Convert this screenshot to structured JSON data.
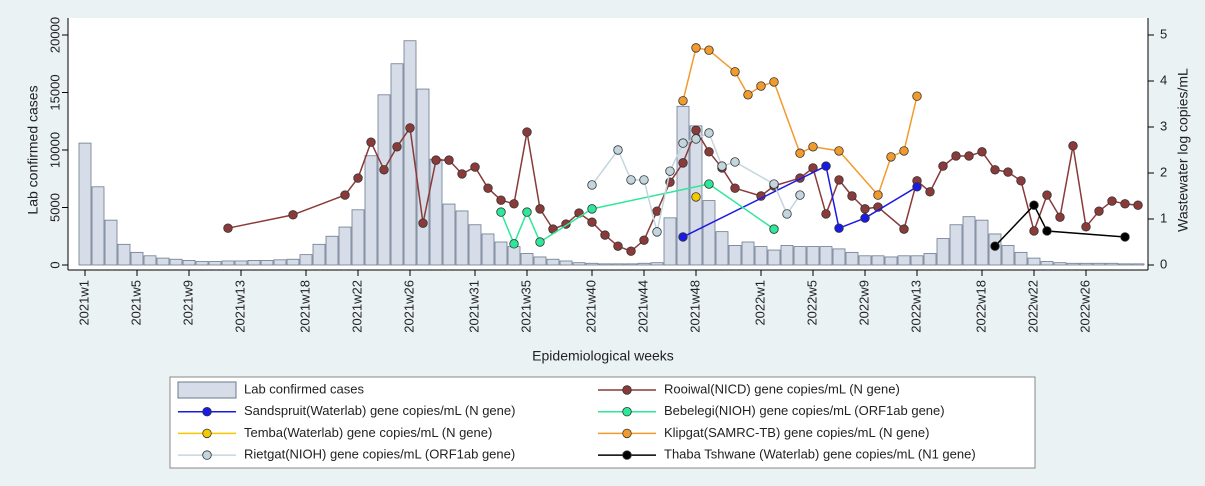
{
  "chart_data": {
    "type": "bar",
    "x_label": "Epidemiological weeks",
    "y_label": "Lab  confirmed cases",
    "y2_label": "Wastewater log copies/mL",
    "ylim": [
      0,
      20000
    ],
    "yticks": [
      0,
      5000,
      10000,
      15000,
      20000
    ],
    "y2lim": [
      0,
      5
    ],
    "y2ticks": [
      0,
      1,
      2,
      3,
      4,
      5
    ],
    "categories": [
      "2021w1",
      null,
      null,
      null,
      "2021w5",
      null,
      null,
      null,
      "2021w9",
      null,
      null,
      null,
      "2021w13",
      null,
      null,
      null,
      null,
      "2021w18",
      null,
      null,
      null,
      "2021w22",
      null,
      null,
      null,
      "2021w26",
      null,
      null,
      null,
      null,
      "2021w31",
      null,
      null,
      null,
      "2021w35",
      null,
      null,
      null,
      null,
      "2021w40",
      null,
      null,
      null,
      "2021w44",
      null,
      null,
      null,
      "2021w48",
      null,
      null,
      null,
      null,
      "2022w1",
      null,
      null,
      null,
      "2022w5",
      null,
      null,
      null,
      "2022w9",
      null,
      null,
      null,
      "2022w13",
      null,
      null,
      null,
      null,
      "2022w18",
      null,
      null,
      null,
      "2022w22",
      null,
      null,
      null,
      "2022w26",
      null,
      null,
      null,
      null
    ],
    "series": [
      {
        "name": "Lab  confirmed cases",
        "type": "bar",
        "color": "#d6dde8",
        "values": [
          10600,
          6800,
          3900,
          1800,
          1100,
          800,
          600,
          500,
          400,
          300,
          300,
          350,
          350,
          400,
          400,
          450,
          500,
          900,
          1800,
          2500,
          3300,
          4800,
          9500,
          14800,
          17500,
          19500,
          15300,
          9200,
          5300,
          4700,
          3500,
          2700,
          2000,
          1600,
          1000,
          700,
          500,
          350,
          200,
          150,
          100,
          100,
          100,
          150,
          200,
          4100,
          13800,
          12100,
          5600,
          2900,
          1700,
          2000,
          1600,
          1300,
          1700,
          1600,
          1600,
          1600,
          1400,
          1100,
          800,
          800,
          700,
          800,
          800,
          1000,
          2300,
          3500,
          4200,
          3900,
          2700,
          1700,
          1100,
          600,
          300,
          200,
          150,
          150,
          150,
          150,
          100,
          100
        ]
      },
      {
        "name": "Rooiwal(NICD) gene copies/mL (N gene)",
        "type": "line",
        "axis": "y2",
        "color": "#8b3a3a",
        "values": [
          null,
          null,
          null,
          null,
          null,
          null,
          null,
          null,
          null,
          null,
          null,
          0.8,
          null,
          null,
          null,
          null,
          1.09,
          null,
          null,
          null,
          1.52,
          1.89,
          2.67,
          2.07,
          2.57,
          2.98,
          0.91,
          2.28,
          2.28,
          1.98,
          2.13,
          1.67,
          1.41,
          1.33,
          2.89,
          1.22,
          0.78,
          0.89,
          1.13,
          0.93,
          0.65,
          0.41,
          0.3,
          0.54,
          1.17,
          1.8,
          2.22,
          2.93,
          2.46,
          2.11,
          1.67,
          null,
          1.5,
          1.72,
          null,
          1.89,
          2.11,
          1.11,
          1.85,
          1.5,
          1.22,
          1.26,
          null,
          0.78,
          1.83,
          1.59,
          2.15,
          2.37,
          2.37,
          2.46,
          2.07,
          2.02,
          1.83,
          0.74,
          1.52,
          1.04,
          2.59,
          0.83,
          1.17,
          1.39,
          1.33,
          1.3
        ]
      },
      {
        "name": "Sandspruit(Waterlab) gene copies/mL (N gene)",
        "type": "line",
        "axis": "y2",
        "color": "#1a1ae6",
        "values": [
          null,
          null,
          null,
          null,
          null,
          null,
          null,
          null,
          null,
          null,
          null,
          null,
          null,
          null,
          null,
          null,
          null,
          null,
          null,
          null,
          null,
          null,
          null,
          null,
          null,
          null,
          null,
          null,
          null,
          null,
          null,
          null,
          null,
          null,
          null,
          null,
          null,
          null,
          null,
          null,
          null,
          null,
          null,
          null,
          null,
          null,
          0.61,
          null,
          null,
          null,
          null,
          null,
          null,
          null,
          null,
          null,
          null,
          2.15,
          0.8,
          null,
          1.02,
          null,
          null,
          null,
          1.7,
          null,
          null,
          null,
          null,
          null,
          null,
          null,
          null,
          null,
          null,
          null,
          null,
          null,
          null,
          null,
          null,
          null
        ]
      },
      {
        "name": "Bebelegi(NIOH) gene copies/mL (ORF1ab gene)",
        "type": "line",
        "axis": "y2",
        "color": "#2ee89a",
        "values": [
          null,
          null,
          null,
          null,
          null,
          null,
          null,
          null,
          null,
          null,
          null,
          null,
          null,
          null,
          null,
          null,
          null,
          null,
          null,
          null,
          null,
          null,
          null,
          null,
          null,
          null,
          null,
          null,
          null,
          null,
          null,
          null,
          1.15,
          0.46,
          1.15,
          0.5,
          null,
          null,
          null,
          1.22,
          null,
          null,
          null,
          null,
          null,
          null,
          null,
          null,
          1.76,
          null,
          null,
          null,
          null,
          0.78,
          null,
          null,
          null,
          null,
          null,
          null,
          null,
          null,
          null,
          null,
          null,
          null,
          null,
          null,
          null,
          null,
          null,
          null,
          null,
          null,
          null,
          null,
          null,
          null,
          null,
          null,
          null,
          null
        ]
      },
      {
        "name": "Temba(Waterlab) gene copies/mL (N gene)",
        "type": "line",
        "axis": "y2",
        "color": "#f5c800",
        "values": [
          null,
          null,
          null,
          null,
          null,
          null,
          null,
          null,
          null,
          null,
          null,
          null,
          null,
          null,
          null,
          null,
          null,
          null,
          null,
          null,
          null,
          null,
          null,
          null,
          null,
          null,
          null,
          null,
          null,
          null,
          null,
          null,
          null,
          null,
          null,
          null,
          null,
          null,
          null,
          null,
          null,
          null,
          null,
          null,
          null,
          null,
          null,
          1.48,
          null,
          null,
          null,
          null,
          null,
          null,
          null,
          null,
          null,
          null,
          null,
          null,
          null,
          null,
          null,
          null,
          null,
          null,
          null,
          null,
          null,
          null,
          null,
          null,
          null,
          null,
          null,
          null,
          null,
          null,
          null,
          null,
          null,
          null
        ]
      },
      {
        "name": "Klipgat(SAMRC-TB) gene copies/mL (N gene)",
        "type": "line",
        "axis": "y2",
        "color": "#f39a2c",
        "values": [
          null,
          null,
          null,
          null,
          null,
          null,
          null,
          null,
          null,
          null,
          null,
          null,
          null,
          null,
          null,
          null,
          null,
          null,
          null,
          null,
          null,
          null,
          null,
          null,
          null,
          null,
          null,
          null,
          null,
          null,
          null,
          null,
          null,
          null,
          null,
          null,
          null,
          null,
          null,
          null,
          null,
          null,
          null,
          null,
          null,
          null,
          3.57,
          4.72,
          4.67,
          null,
          4.2,
          3.7,
          3.89,
          3.98,
          null,
          2.43,
          2.57,
          null,
          2.48,
          null,
          null,
          1.52,
          2.35,
          2.48,
          3.67,
          null,
          null,
          null,
          null,
          null,
          null,
          null,
          null,
          null,
          null,
          null,
          null,
          null,
          null,
          null,
          null,
          null
        ]
      },
      {
        "name": "Rietgat(NIOH) gene copies/mL (ORF1ab gene)",
        "type": "line",
        "axis": "y2",
        "color": "#c3d6de",
        "values": [
          null,
          null,
          null,
          null,
          null,
          null,
          null,
          null,
          null,
          null,
          null,
          null,
          null,
          null,
          null,
          null,
          null,
          null,
          null,
          null,
          null,
          null,
          null,
          null,
          null,
          null,
          null,
          null,
          null,
          null,
          null,
          null,
          null,
          null,
          null,
          null,
          null,
          null,
          null,
          1.74,
          null,
          2.5,
          1.85,
          1.85,
          0.72,
          2.04,
          2.65,
          2.74,
          2.87,
          2.15,
          2.24,
          null,
          null,
          1.76,
          1.11,
          1.52,
          null,
          null,
          null,
          null,
          null,
          null,
          null,
          null,
          null,
          null,
          null,
          null,
          null,
          null,
          null,
          null,
          null,
          null,
          null,
          null,
          null,
          null,
          null,
          null,
          null,
          null
        ]
      },
      {
        "name": "Thaba Tshwane (Waterlab) gene copies/mL (N1 gene)",
        "type": "line",
        "axis": "y2",
        "color": "#000000",
        "values": [
          null,
          null,
          null,
          null,
          null,
          null,
          null,
          null,
          null,
          null,
          null,
          null,
          null,
          null,
          null,
          null,
          null,
          null,
          null,
          null,
          null,
          null,
          null,
          null,
          null,
          null,
          null,
          null,
          null,
          null,
          null,
          null,
          null,
          null,
          null,
          null,
          null,
          null,
          null,
          null,
          null,
          null,
          null,
          null,
          null,
          null,
          null,
          null,
          null,
          null,
          null,
          null,
          null,
          null,
          null,
          null,
          null,
          null,
          null,
          null,
          null,
          null,
          null,
          null,
          null,
          null,
          null,
          null,
          null,
          null,
          0.41,
          null,
          null,
          1.3,
          0.74,
          null,
          null,
          null,
          null,
          null,
          0.61,
          null
        ]
      }
    ]
  }
}
